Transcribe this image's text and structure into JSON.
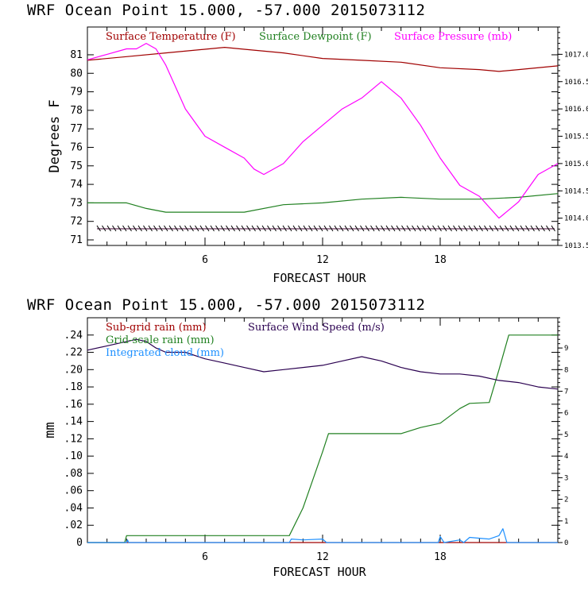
{
  "chart_data": [
    {
      "type": "line",
      "title": "WRF   Ocean Point   15.000, -57.000  2015073112",
      "xlabel": "FORECAST HOUR",
      "ylabel": "Degrees F",
      "xlim": [
        0,
        24
      ],
      "ylim": [
        70.7,
        82.5
      ],
      "y2lim": [
        1013.5,
        1017.5
      ],
      "xticks": [
        6,
        12,
        18
      ],
      "yticks": [
        71,
        72,
        73,
        74,
        75,
        76,
        77,
        78,
        79,
        80,
        81
      ],
      "y2ticks": [
        "1013.5",
        "1014.0",
        "1014.5",
        "1015.0",
        "1015.5",
        "1016.0",
        "1016.5",
        "1017.0"
      ],
      "legend": [
        "Surface Temperature (F)",
        "Surface Dewpoint (F)",
        "Surface Pressure (mb)"
      ],
      "colors": {
        "temperature": "#a00000",
        "dewpoint": "#208020",
        "pressure": "#ff00ff",
        "wind_barbs": "#000000"
      },
      "series": [
        {
          "name": "Surface Temperature (F)",
          "axis": "left",
          "x": [
            0,
            2,
            4,
            6,
            7,
            8,
            10,
            12,
            14,
            16,
            18,
            20,
            21,
            22,
            24
          ],
          "values": [
            80.7,
            80.9,
            81.1,
            81.3,
            81.4,
            81.3,
            81.1,
            80.8,
            80.7,
            80.6,
            80.3,
            80.2,
            80.1,
            80.2,
            80.4
          ]
        },
        {
          "name": "Surface Dewpoint (F)",
          "axis": "left",
          "x": [
            0,
            2,
            3,
            4,
            6,
            8,
            10,
            12,
            14,
            16,
            18,
            20,
            22,
            24
          ],
          "values": [
            73.0,
            73.0,
            72.7,
            72.5,
            72.5,
            72.5,
            72.9,
            73.0,
            73.2,
            73.3,
            73.2,
            73.2,
            73.3,
            73.5
          ]
        },
        {
          "name": "Surface Pressure (mb)",
          "axis": "right",
          "x": [
            0,
            1,
            2,
            2.5,
            3,
            3.5,
            4,
            5,
            6,
            7,
            8,
            8.5,
            9,
            10,
            11,
            12,
            13,
            14,
            15,
            16,
            17,
            18,
            19,
            20,
            21,
            22,
            23,
            24
          ],
          "values": [
            1016.9,
            1017.0,
            1017.1,
            1017.1,
            1017.2,
            1017.1,
            1016.8,
            1016.0,
            1015.5,
            1015.3,
            1015.1,
            1014.9,
            1014.8,
            1015.0,
            1015.4,
            1015.7,
            1016.0,
            1016.2,
            1016.5,
            1016.2,
            1015.7,
            1015.1,
            1014.6,
            1014.4,
            1014.0,
            1014.3,
            1014.8,
            1015.0
          ]
        }
      ]
    },
    {
      "type": "line",
      "title": "WRF   Ocean Point   15.000, -57.000  2015073112",
      "xlabel": "FORECAST HOUR",
      "ylabel": "mm",
      "xlim": [
        0,
        24
      ],
      "ylim": [
        0,
        0.26
      ],
      "y2lim": [
        0,
        10.4
      ],
      "xticks": [
        6,
        12,
        18
      ],
      "yticks": [
        "0",
        ".02",
        ".04",
        ".06",
        ".08",
        ".10",
        ".12",
        ".14",
        ".16",
        ".18",
        ".20",
        ".22",
        ".24"
      ],
      "y2ticks": [
        "0",
        "1",
        "2",
        "3",
        "4",
        "5",
        "6",
        "7",
        "8",
        "9"
      ],
      "legend": [
        "Sub-grid rain (mm)",
        "Grid-scale rain (mm)",
        "Integrated cloud (mm)",
        "Surface Wind Speed (m/s)"
      ],
      "colors": {
        "subgrid": "#a00000",
        "gridscale": "#208020",
        "cloud": "#1e90ff",
        "wind": "#2a0050"
      },
      "series": [
        {
          "name": "Sub-grid rain (mm)",
          "axis": "left",
          "x": [
            0,
            24
          ],
          "values": [
            0,
            0
          ]
        },
        {
          "name": "Grid-scale rain (mm)",
          "axis": "left",
          "x": [
            0,
            1.9,
            2.0,
            10.3,
            11.0,
            12.0,
            12.3,
            16.0,
            17.0,
            18.0,
            19.0,
            19.5,
            20.5,
            21.0,
            21.5,
            24
          ],
          "values": [
            0,
            0,
            0.008,
            0.008,
            0.04,
            0.105,
            0.126,
            0.126,
            0.133,
            0.138,
            0.155,
            0.161,
            0.162,
            0.2,
            0.24,
            0.24
          ]
        },
        {
          "name": "Integrated cloud (mm)",
          "axis": "left",
          "x": [
            0,
            2.0,
            2.05,
            2.1,
            10.3,
            10.4,
            11.0,
            12.0,
            12.2,
            17.9,
            18.0,
            18.2,
            19.0,
            19.2,
            19.5,
            20.5,
            21.0,
            21.2,
            21.4,
            24
          ],
          "values": [
            0,
            0,
            0.003,
            0,
            0,
            0.004,
            0.003,
            0.004,
            0,
            0,
            0.007,
            0,
            0.003,
            0,
            0.006,
            0.004,
            0.008,
            0.016,
            0,
            0
          ]
        },
        {
          "name": "Surface Wind Speed (m/s)",
          "axis": "right",
          "x": [
            0,
            1,
            2,
            2.5,
            3,
            3.5,
            4,
            5,
            6,
            7,
            8,
            9,
            10,
            11,
            12,
            13,
            14,
            15,
            16,
            17,
            18,
            19,
            20,
            21,
            22,
            23,
            24
          ],
          "values": [
            8.9,
            9.1,
            9.3,
            9.4,
            9.3,
            9.0,
            8.8,
            8.8,
            8.5,
            8.3,
            8.1,
            7.9,
            8.0,
            8.1,
            8.2,
            8.4,
            8.6,
            8.4,
            8.1,
            7.9,
            7.8,
            7.8,
            7.7,
            7.5,
            7.4,
            7.2,
            7.1
          ]
        }
      ]
    }
  ]
}
